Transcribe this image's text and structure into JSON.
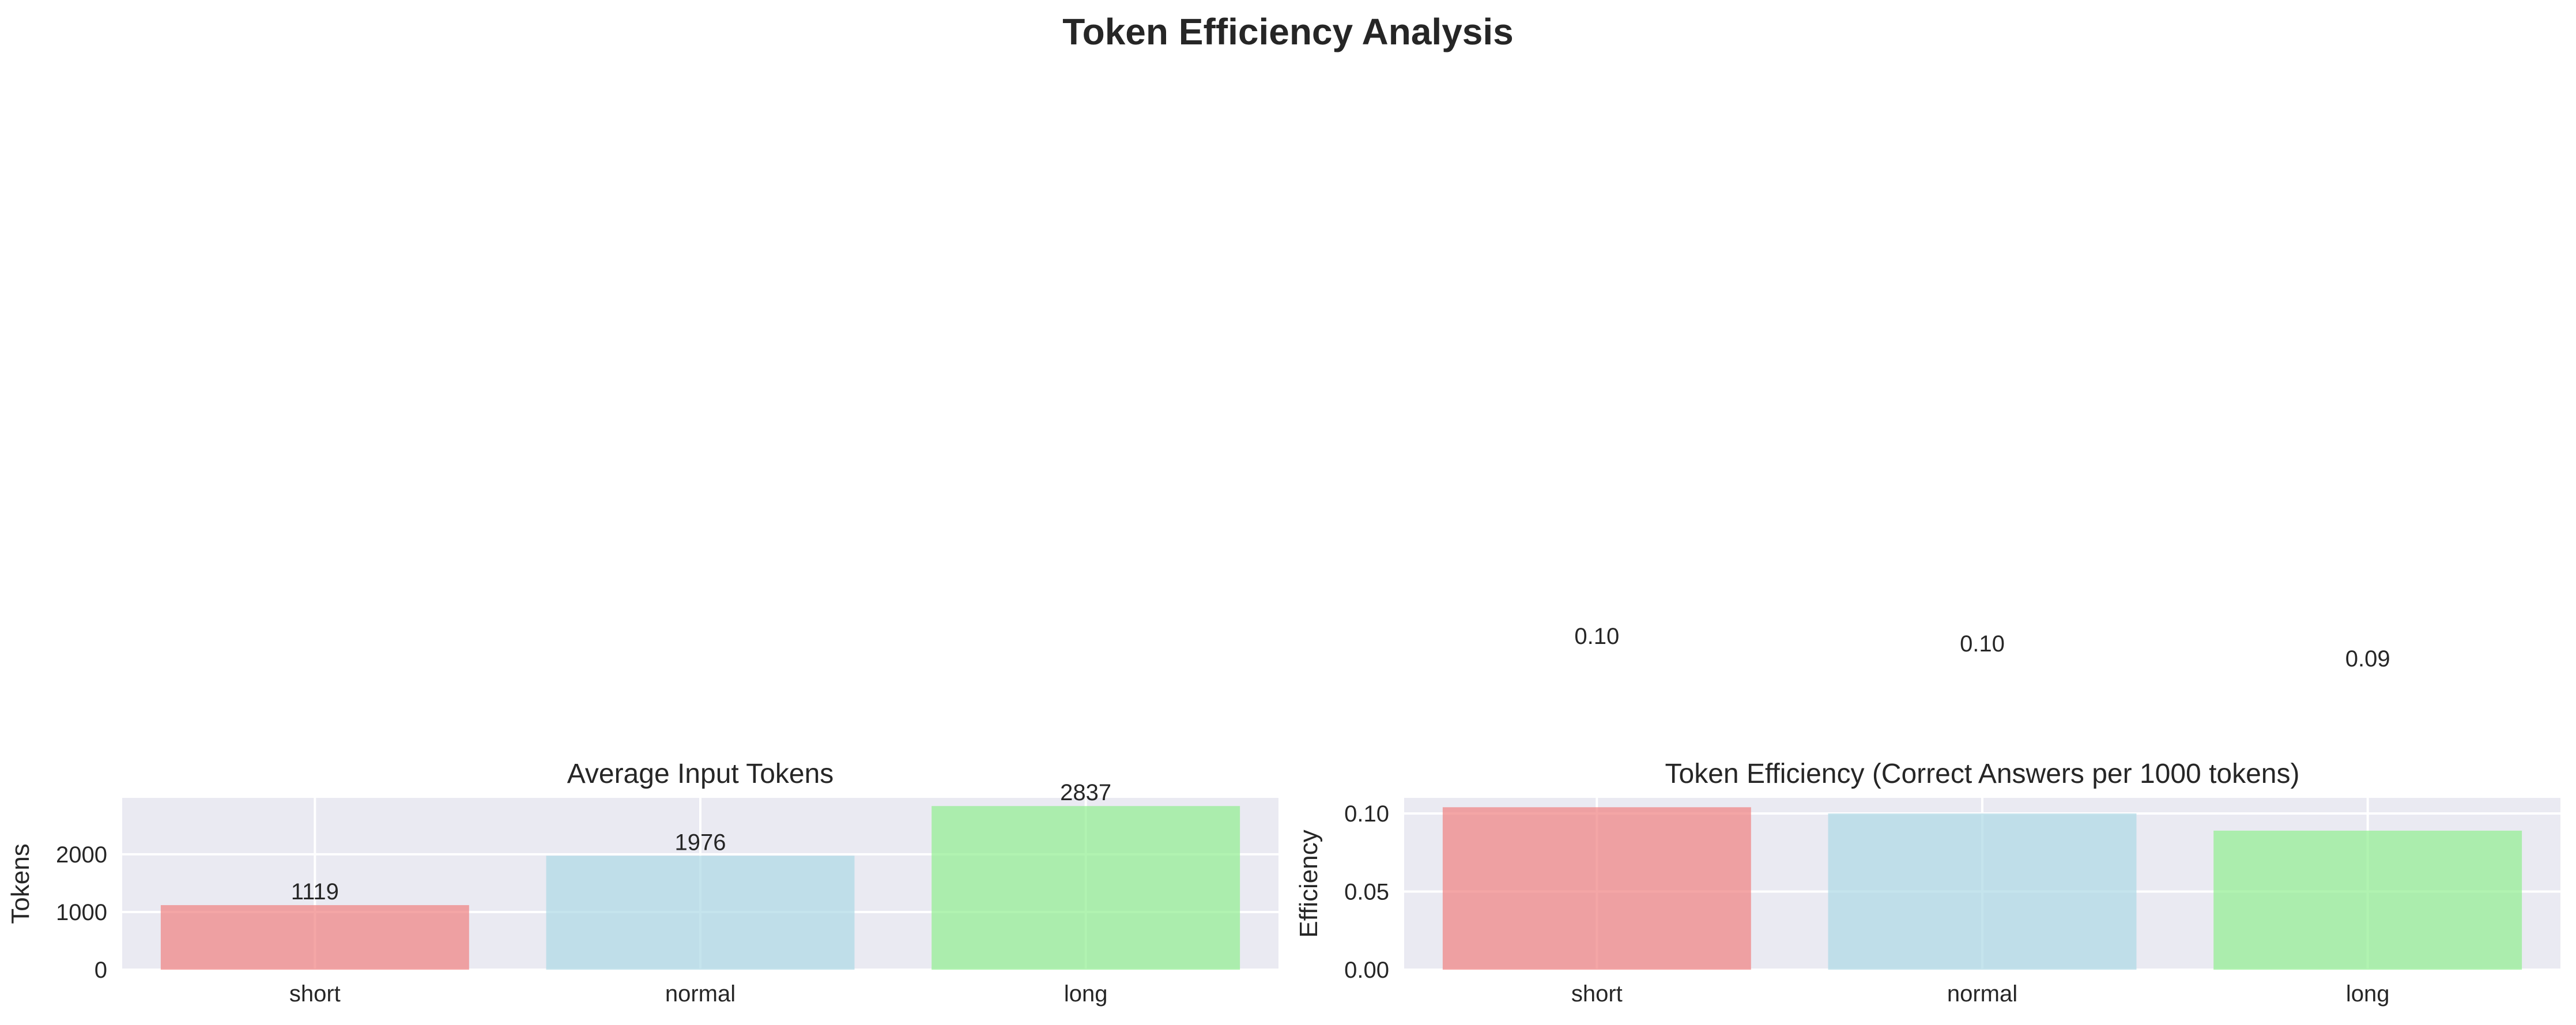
{
  "figure": {
    "title": "Token Efficiency Analysis"
  },
  "chart_data": [
    {
      "type": "bar",
      "title": "Average Input Tokens",
      "xlabel": "",
      "ylabel": "Tokens",
      "categories": [
        "short",
        "normal",
        "long"
      ],
      "values": [
        1119,
        1976,
        2837
      ],
      "value_labels": [
        "1119",
        "1976",
        "2837"
      ],
      "colors": [
        "#f08080",
        "#add8e6",
        "#90ee90"
      ],
      "ylim": [
        0,
        2979
      ],
      "yticks": [
        0,
        1000,
        2000
      ],
      "ytick_labels": [
        "0",
        "1000",
        "2000"
      ],
      "grid": true,
      "legend": "none"
    },
    {
      "type": "bar",
      "title": "Token Efficiency (Correct Answers per 1000 tokens)",
      "xlabel": "",
      "ylabel": "Efficiency",
      "categories": [
        "short",
        "normal",
        "long"
      ],
      "values": [
        0.104,
        0.1,
        0.089
      ],
      "value_labels": [
        "0.10",
        "0.10",
        "0.09"
      ],
      "colors": [
        "#f08080",
        "#add8e6",
        "#90ee90"
      ],
      "ylim": [
        0,
        0.11
      ],
      "yticks": [
        0,
        0.05,
        0.1
      ],
      "ytick_labels": [
        "0.00",
        "0.05",
        "0.10"
      ],
      "grid": true,
      "legend": "none"
    }
  ]
}
